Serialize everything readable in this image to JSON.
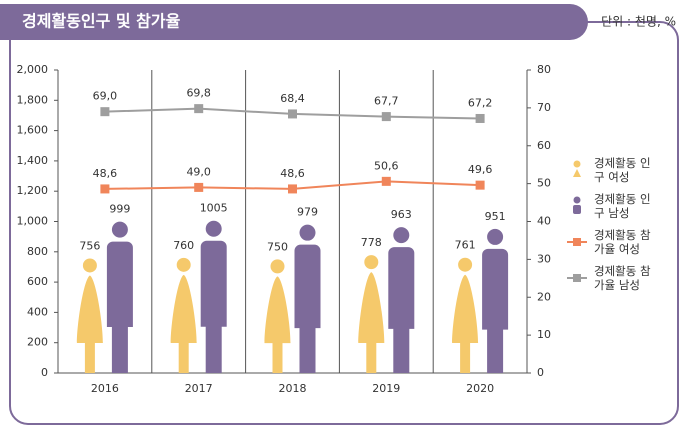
{
  "chart_data": {
    "type": "bar-line",
    "title": "경제활동인구 및 참가율",
    "unit": "단위 : 천명, %",
    "categories": [
      "2016",
      "2017",
      "2018",
      "2019",
      "2020"
    ],
    "series": [
      {
        "name": "경제활동 인구 여성",
        "color": "#f5c96b",
        "kind": "bar",
        "values": [
          756,
          760,
          750,
          778,
          761
        ]
      },
      {
        "name": "경제활동 인구 남성",
        "color": "#7d6a9a",
        "kind": "bar",
        "values": [
          999,
          1005,
          979,
          963,
          951
        ]
      },
      {
        "name": "경제활동 참가율 여성",
        "color": "#f0855a",
        "kind": "line",
        "axis": "y2",
        "values": [
          48.6,
          49.0,
          48.6,
          50.6,
          49.6
        ],
        "value_labels": [
          "48,6",
          "49,0",
          "48,6",
          "50,6",
          "49,6"
        ]
      },
      {
        "name": "경제활동 참가율 남성",
        "color": "#9e9e9e",
        "kind": "line",
        "axis": "y2",
        "values": [
          69.0,
          69.8,
          68.4,
          67.7,
          67.2
        ],
        "value_labels": [
          "69,0",
          "69,8",
          "68,4",
          "67,7",
          "67,2"
        ]
      }
    ],
    "ylim": [
      0,
      2000
    ],
    "yticks": [
      0,
      200,
      400,
      600,
      800,
      {
        "value": 1000,
        "label": "1,000"
      },
      {
        "value": 1200,
        "label": "1,200"
      },
      {
        "value": 1400,
        "label": "1,400"
      },
      {
        "value": 1600,
        "label": "1,600"
      },
      {
        "value": 1800,
        "label": "1,800"
      },
      {
        "value": 2000,
        "label": "2,000"
      }
    ],
    "y2lim": [
      0,
      80
    ],
    "y2ticks": [
      0,
      10,
      20,
      30,
      40,
      50,
      60,
      70,
      80
    ]
  }
}
